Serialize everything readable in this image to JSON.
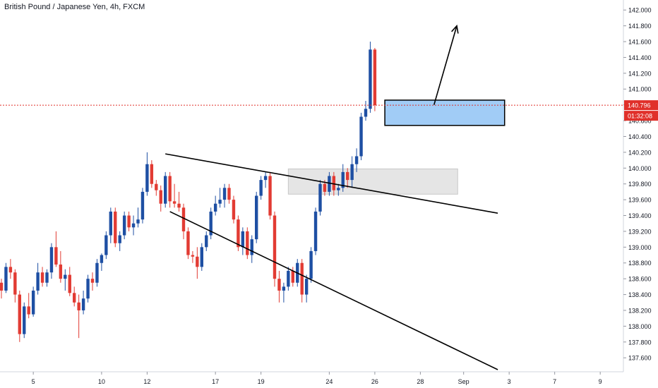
{
  "title": "British Pound / Japanese Yen, 4h, FXCM",
  "colors": {
    "bull": "#1e4fa3",
    "bear": "#e23b33",
    "price_line": "#e0302a",
    "axis_text": "#131722",
    "zone_blue": "#90c3f5",
    "zone_grey": "#dcdcdc"
  },
  "price_tag": "140.796",
  "countdown_tag": "01:32:08",
  "chart_data": {
    "type": "candlestick",
    "title": "British Pound / Japanese Yen, 4h, FXCM",
    "ylim": [
      137.45,
      142.1
    ],
    "y_ticks": [
      "142.000",
      "141.800",
      "141.600",
      "141.400",
      "141.200",
      "141.000",
      "140.800",
      "140.600",
      "140.400",
      "140.200",
      "140.000",
      "139.800",
      "139.600",
      "139.400",
      "139.200",
      "139.000",
      "138.800",
      "138.600",
      "138.400",
      "138.200",
      "138.000",
      "137.800",
      "137.600"
    ],
    "x_ticks": [
      "5",
      "10",
      "12",
      "17",
      "19",
      "24",
      "26",
      "28",
      "Sep",
      "3",
      "7",
      "9"
    ],
    "last_price": 140.796,
    "countdown": "01:32:08",
    "zones": [
      {
        "name": "resistance-turned-support",
        "from": 139.67,
        "to": 139.99
      },
      {
        "name": "demand-zone",
        "from": 140.54,
        "to": 140.86
      }
    ],
    "candles": [
      [
        138.55,
        138.6,
        138.35,
        138.45
      ],
      [
        138.45,
        138.8,
        138.42,
        138.75
      ],
      [
        138.75,
        138.85,
        138.6,
        138.68
      ],
      [
        138.68,
        138.72,
        138.3,
        138.4
      ],
      [
        138.4,
        138.45,
        137.8,
        137.9
      ],
      [
        137.9,
        138.3,
        137.85,
        138.25
      ],
      [
        138.25,
        138.42,
        138.1,
        138.15
      ],
      [
        138.15,
        138.5,
        138.12,
        138.45
      ],
      [
        138.45,
        138.8,
        138.4,
        138.68
      ],
      [
        138.68,
        138.75,
        138.5,
        138.55
      ],
      [
        138.55,
        138.72,
        138.5,
        138.68
      ],
      [
        138.68,
        139.05,
        138.6,
        139.0
      ],
      [
        139.0,
        139.2,
        138.75,
        138.78
      ],
      [
        138.78,
        138.95,
        138.55,
        138.6
      ],
      [
        138.6,
        138.72,
        138.45,
        138.65
      ],
      [
        138.65,
        138.75,
        138.38,
        138.42
      ],
      [
        138.42,
        138.5,
        138.25,
        138.3
      ],
      [
        138.3,
        138.4,
        137.85,
        138.2
      ],
      [
        138.2,
        138.45,
        138.15,
        138.35
      ],
      [
        138.35,
        138.65,
        138.3,
        138.6
      ],
      [
        138.6,
        138.68,
        138.45,
        138.55
      ],
      [
        138.55,
        138.85,
        138.5,
        138.8
      ],
      [
        138.8,
        138.92,
        138.7,
        138.9
      ],
      [
        138.9,
        139.2,
        138.85,
        139.15
      ],
      [
        139.15,
        139.5,
        139.05,
        139.45
      ],
      [
        139.45,
        139.5,
        139.0,
        139.05
      ],
      [
        139.05,
        139.2,
        138.95,
        139.15
      ],
      [
        139.15,
        139.45,
        139.1,
        139.4
      ],
      [
        139.4,
        139.45,
        139.2,
        139.25
      ],
      [
        139.25,
        139.4,
        139.15,
        139.3
      ],
      [
        139.3,
        139.5,
        139.25,
        139.35
      ],
      [
        139.35,
        139.75,
        139.3,
        139.7
      ],
      [
        139.7,
        140.2,
        139.65,
        140.05
      ],
      [
        140.05,
        140.1,
        139.75,
        139.8
      ],
      [
        139.8,
        139.85,
        139.65,
        139.72
      ],
      [
        139.72,
        139.78,
        139.45,
        139.55
      ],
      [
        139.55,
        139.95,
        139.5,
        139.9
      ],
      [
        139.9,
        139.95,
        139.5,
        139.58
      ],
      [
        139.58,
        139.8,
        139.5,
        139.55
      ],
      [
        139.55,
        139.7,
        139.45,
        139.5
      ],
      [
        139.5,
        139.55,
        139.1,
        139.2
      ],
      [
        139.2,
        139.25,
        138.85,
        138.9
      ],
      [
        138.9,
        138.95,
        138.8,
        138.88
      ],
      [
        138.88,
        139.0,
        138.6,
        138.75
      ],
      [
        138.75,
        139.05,
        138.7,
        139.0
      ],
      [
        139.0,
        139.2,
        138.95,
        139.15
      ],
      [
        139.15,
        139.5,
        139.1,
        139.45
      ],
      [
        139.45,
        139.65,
        139.4,
        139.55
      ],
      [
        139.55,
        139.75,
        139.5,
        139.6
      ],
      [
        139.6,
        139.8,
        139.5,
        139.75
      ],
      [
        139.75,
        139.8,
        139.55,
        139.6
      ],
      [
        139.6,
        139.65,
        139.3,
        139.35
      ],
      [
        139.35,
        139.4,
        138.95,
        139.0
      ],
      [
        139.0,
        139.25,
        138.9,
        139.2
      ],
      [
        139.2,
        139.25,
        138.85,
        138.9
      ],
      [
        138.9,
        139.15,
        138.8,
        139.1
      ],
      [
        139.1,
        139.7,
        139.05,
        139.65
      ],
      [
        139.65,
        139.9,
        139.6,
        139.85
      ],
      [
        139.85,
        139.95,
        139.75,
        139.9
      ],
      [
        139.9,
        139.95,
        139.35,
        139.4
      ],
      [
        139.4,
        139.45,
        138.5,
        138.6
      ],
      [
        138.6,
        138.7,
        138.3,
        138.45
      ],
      [
        138.45,
        138.55,
        138.3,
        138.5
      ],
      [
        138.5,
        138.75,
        138.45,
        138.7
      ],
      [
        138.7,
        138.75,
        138.5,
        138.55
      ],
      [
        138.55,
        138.85,
        138.5,
        138.8
      ],
      [
        138.8,
        138.85,
        138.3,
        138.4
      ],
      [
        138.4,
        138.65,
        138.3,
        138.6
      ],
      [
        138.6,
        139.0,
        138.55,
        138.95
      ],
      [
        138.95,
        139.5,
        138.9,
        139.45
      ],
      [
        139.45,
        139.85,
        139.4,
        139.8
      ],
      [
        139.8,
        139.85,
        139.65,
        139.7
      ],
      [
        139.7,
        139.95,
        139.65,
        139.9
      ],
      [
        139.9,
        139.95,
        139.65,
        139.72
      ],
      [
        139.72,
        139.8,
        139.65,
        139.75
      ],
      [
        139.75,
        140.05,
        139.7,
        139.95
      ],
      [
        139.95,
        140.0,
        139.75,
        139.85
      ],
      [
        139.85,
        140.15,
        139.75,
        140.05
      ],
      [
        140.05,
        140.25,
        139.95,
        140.15
      ],
      [
        140.15,
        140.7,
        140.1,
        140.65
      ],
      [
        140.65,
        140.85,
        140.6,
        140.75
      ],
      [
        140.75,
        141.6,
        140.7,
        141.5
      ],
      [
        141.5,
        141.52,
        140.72,
        140.796
      ]
    ],
    "trendlines": [
      {
        "name": "upper-trendline",
        "from": {
          "i": 36,
          "p": 140.18
        },
        "to": {
          "i": 109,
          "p": 139.43
        }
      },
      {
        "name": "lower-trendline",
        "from": {
          "i": 37,
          "p": 139.45
        },
        "to": {
          "i": 109,
          "p": 137.45
        }
      },
      {
        "name": "projection-arrow",
        "from": {
          "i": 95,
          "p": 140.8
        },
        "to": {
          "i": 100,
          "p": 141.8
        }
      }
    ]
  }
}
